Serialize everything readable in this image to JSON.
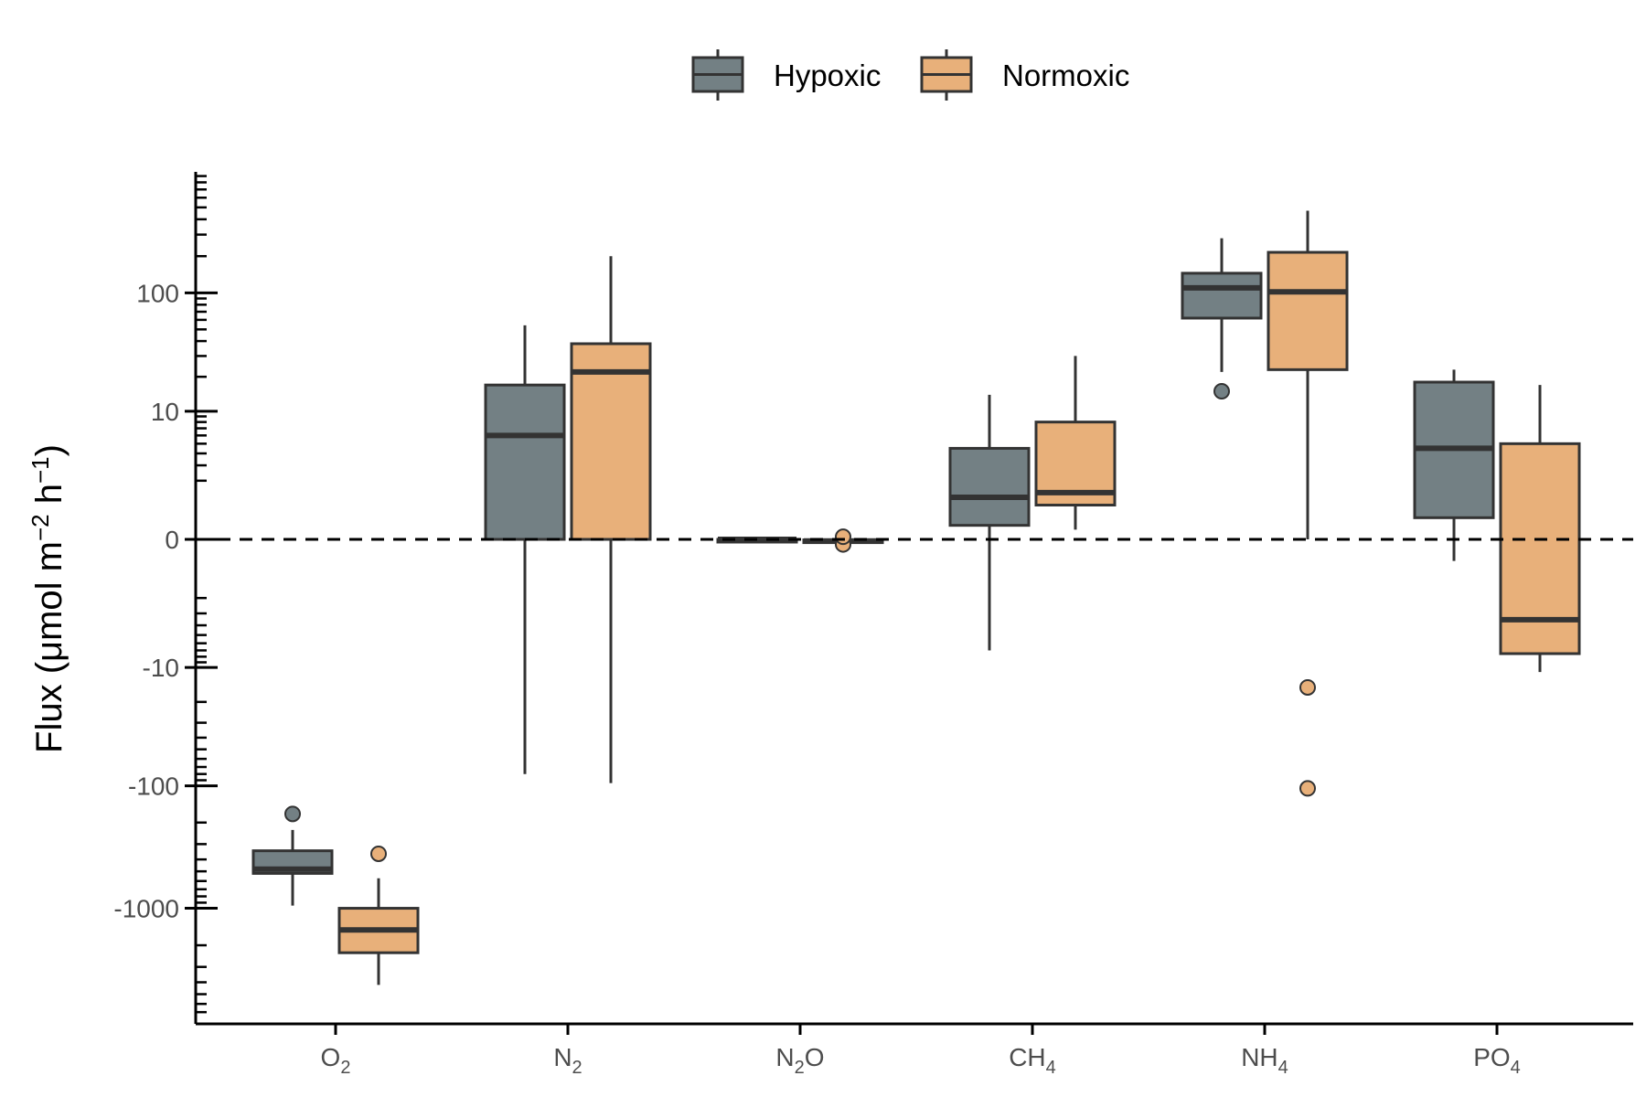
{
  "chart_data": {
    "type": "boxplot",
    "y_scale": "pseudo-log (symmetric log10)",
    "ylabel": {
      "prefix": "Flux (",
      "mu": "μ",
      "mol": "mol m",
      "sup1": "−2",
      "mid": " h",
      "sup2": "−1",
      "suffix": ")"
    },
    "y_ticks": [
      {
        "value": 100,
        "label": "100"
      },
      {
        "value": 10,
        "label": "10"
      },
      {
        "value": 0,
        "label": "0"
      },
      {
        "value": -10,
        "label": "-10"
      },
      {
        "value": -100,
        "label": "-100"
      },
      {
        "value": -1000,
        "label": "-1000"
      }
    ],
    "reference_line": {
      "y": 0,
      "style": "dashed"
    },
    "legend_position": "top",
    "categories": [
      {
        "base": "O",
        "sub": "2"
      },
      {
        "base": "N",
        "sub": "2"
      },
      {
        "base": "N",
        "sub": "2",
        "post": "O"
      },
      {
        "base": "CH",
        "sub": "4"
      },
      {
        "base": "NH",
        "sub": "4"
      },
      {
        "base": "PO",
        "sub": "4"
      }
    ],
    "series": [
      {
        "name": "Hypoxic",
        "color": "#738084",
        "boxes": [
          {
            "min": -950,
            "q1": -520,
            "median": -480,
            "q3": -340,
            "max": -230,
            "outliers": [
              -170
            ]
          },
          {
            "min": -80,
            "q1": 0,
            "median": 6,
            "q3": 17,
            "max": 54,
            "outliers": []
          },
          {
            "min": 0,
            "q1": 0,
            "median": 0,
            "q3": 0,
            "max": 0,
            "outliers": []
          },
          {
            "min": -7,
            "q1": 0.3,
            "median": 1.2,
            "q3": 4.5,
            "max": 14,
            "outliers": []
          },
          {
            "min": 22,
            "q1": 62,
            "median": 110,
            "q3": 145,
            "max": 280,
            "outliers": [
              15
            ]
          },
          {
            "min": -0.5,
            "q1": 0.5,
            "median": 4.5,
            "q3": 18,
            "max": 23,
            "outliers": []
          }
        ]
      },
      {
        "name": "Normoxic",
        "color": "#e8b07a",
        "boxes": [
          {
            "min": -4200,
            "q1": -2300,
            "median": -1500,
            "q3": -1000,
            "max": -570,
            "outliers": [
              -360
            ]
          },
          {
            "min": -95,
            "q1": 0,
            "median": 22,
            "q3": 38,
            "max": 200,
            "outliers": []
          },
          {
            "min": -0.05,
            "q1": -0.05,
            "median": -0.03,
            "q3": -0.01,
            "max": 0,
            "outliers": [
              -0.1,
              0.05
            ]
          },
          {
            "min": 0.2,
            "q1": 0.9,
            "median": 1.4,
            "q3": 8,
            "max": 30,
            "outliers": []
          },
          {
            "min": 0,
            "q1": 23,
            "median": 102,
            "q3": 215,
            "max": 470,
            "outliers": [
              -15,
              -105
            ]
          },
          {
            "min": -11,
            "q1": -7.5,
            "median": -3.5,
            "q3": 5,
            "max": 17,
            "outliers": []
          }
        ]
      }
    ]
  }
}
